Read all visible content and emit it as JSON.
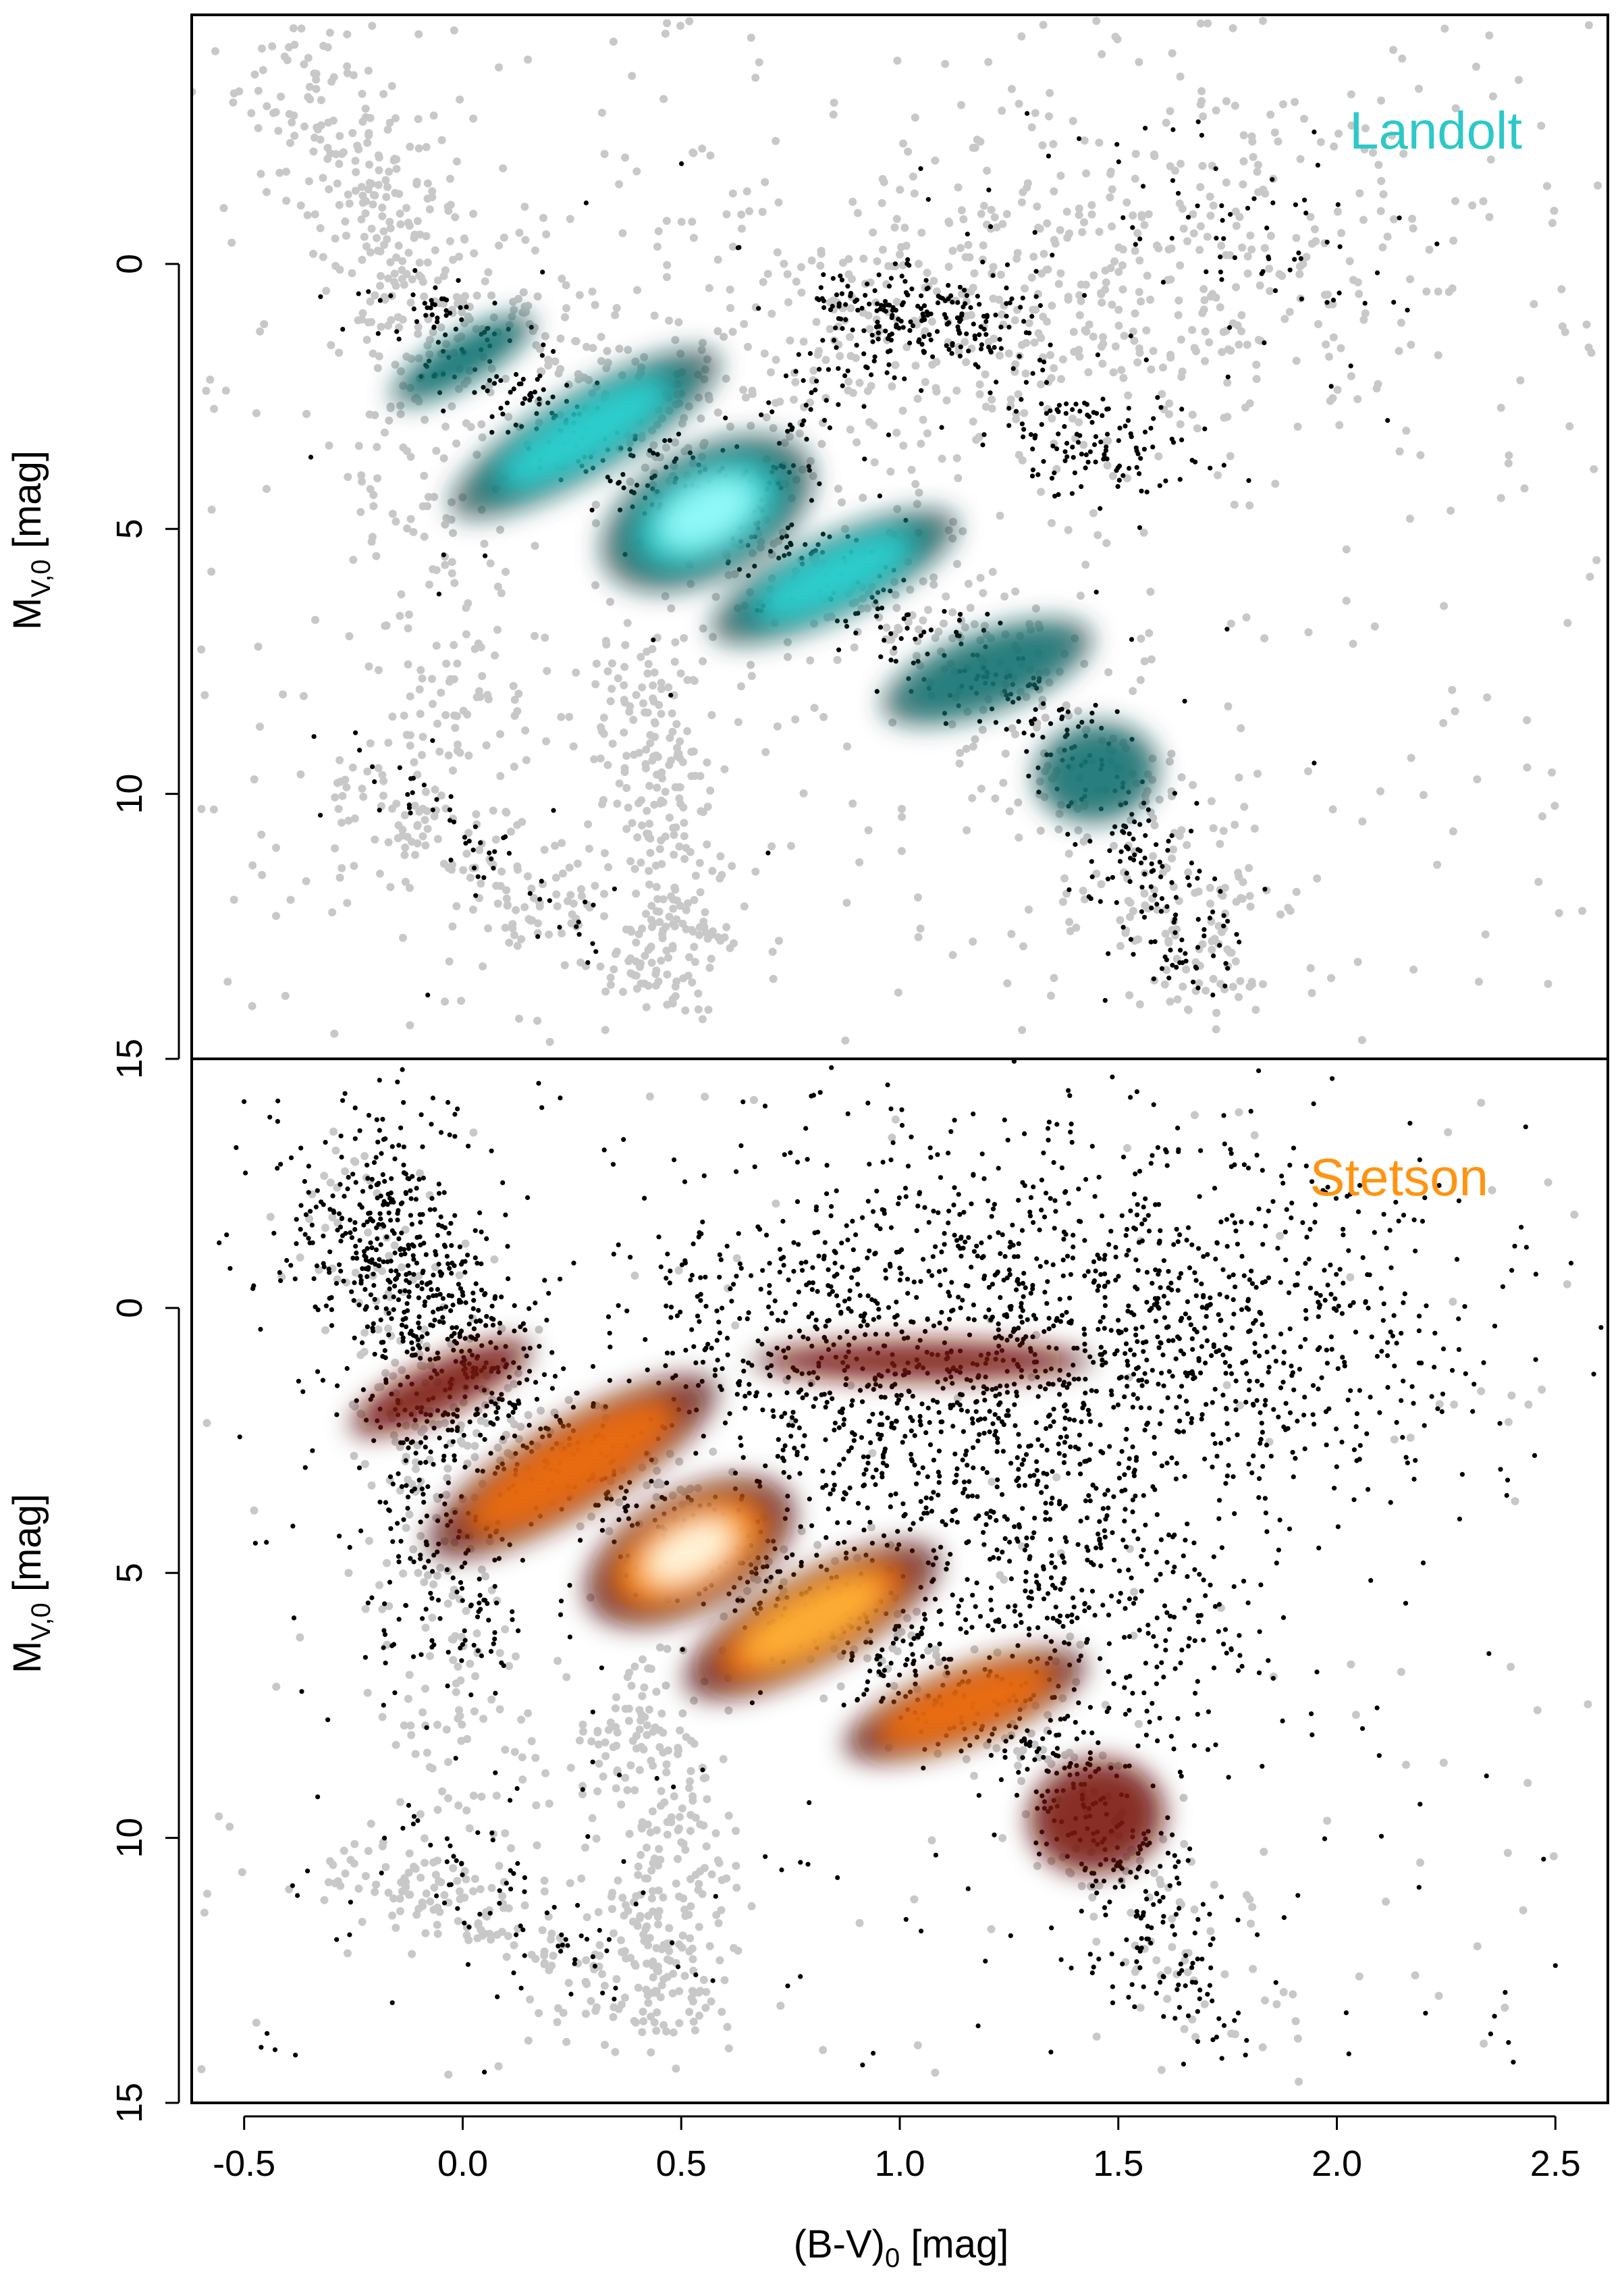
{
  "chart_data": [
    {
      "type": "scatter",
      "panel": "top",
      "annotation": "Landolt",
      "annotation_color": "#2ec8c8",
      "xlabel": {
        "main": "(B-V)",
        "sub": "0",
        "suffix": " [mag]"
      },
      "ylabel": {
        "main": "M",
        "sub": "V,0",
        "suffix": " [mag]"
      },
      "xlim": [
        -0.62,
        2.62
      ],
      "ylim": [
        15,
        -4.7
      ],
      "y_inverted": true,
      "yticks": [
        0,
        5,
        10,
        15
      ],
      "ytick_labels": [
        "0",
        "5",
        "10",
        "15"
      ],
      "background_color": "#c8c8c8",
      "foreground_color": "#000000",
      "density_colors": [
        "#000000",
        "#0a3a3a",
        "#157d7d",
        "#2fd6d6",
        "#8ff8f8"
      ],
      "series": [
        {
          "role": "background",
          "ridges": [
            {
              "path": [
                [
                  -0.45,
                  -4.2
                ],
                [
                  -0.25,
                  -2.5
                ],
                [
                  -0.1,
                  0.2
                ],
                [
                  0.3,
                  2.0
                ],
                [
                  0.6,
                  4.6
                ],
                [
                  1.0,
                  6.6
                ],
                [
                  1.35,
                  8.5
                ],
                [
                  1.5,
                  10.5
                ],
                [
                  1.75,
                  13.8
                ]
              ],
              "spread": 0.11,
              "count": 650
            },
            {
              "path": [
                [
                  0.75,
                  0.8
                ],
                [
                  1.1,
                  0.9
                ],
                [
                  1.5,
                  0.4
                ],
                [
                  1.9,
                  0.6
                ]
              ],
              "spread": 0.25,
              "count": 350
            },
            {
              "path": [
                [
                  0.6,
                  2.4
                ],
                [
                  1.0,
                  1.5
                ],
                [
                  1.6,
                  -2.1
                ],
                [
                  2.0,
                  -1.0
                ]
              ],
              "spread": 0.28,
              "count": 260
            },
            {
              "path": [
                [
                  -0.3,
                  -3.0
                ],
                [
                  -0.1,
                  1.0
                ],
                [
                  -0.05,
                  6.0
                ],
                [
                  0.0,
                  10.0
                ]
              ],
              "spread": 0.09,
              "count": 240
            },
            {
              "path": [
                [
                  -0.25,
                  10.0
                ],
                [
                  0.2,
                  12.0
                ],
                [
                  0.5,
                  13.5
                ]
              ],
              "spread": 0.09,
              "count": 180
            },
            {
              "path": [
                [
                  0.4,
                  7.0
                ],
                [
                  0.45,
                  10.0
                ],
                [
                  0.48,
                  13.5
                ]
              ],
              "spread": 0.07,
              "count": 230
            }
          ],
          "uniform": {
            "x": [
              -0.6,
              2.6
            ],
            "y": [
              -4.6,
              14.8
            ],
            "count": 450
          }
        },
        {
          "role": "foreground",
          "ridges": [
            {
              "path": [
                [
                  -0.15,
                  0.5
                ],
                [
                  0.3,
                  3.5
                ],
                [
                  0.6,
                  4.7
                ],
                [
                  1.0,
                  6.8
                ],
                [
                  1.3,
                  8.4
                ],
                [
                  1.5,
                  10.5
                ],
                [
                  1.7,
                  13.5
                ]
              ],
              "spread": 0.07,
              "count": 550
            },
            {
              "path": [
                [
                  0.6,
                  4.5
                ],
                [
                  0.85,
                  2.0
                ],
                [
                  1.25,
                  1.0
                ]
              ],
              "spread": 0.07,
              "count": 120
            },
            {
              "path": [
                [
                  0.8,
                  0.9
                ],
                [
                  1.0,
                  0.8
                ],
                [
                  1.25,
                  1.1
                ]
              ],
              "spread": 0.06,
              "count": 150
            },
            {
              "path": [
                [
                  1.3,
                  2.6
                ],
                [
                  1.5,
                  3.5
                ],
                [
                  1.65,
                  4.0
                ]
              ],
              "spread": 0.09,
              "count": 130
            },
            {
              "path": [
                [
                  1.35,
                  -1.2
                ],
                [
                  1.6,
                  -0.8
                ],
                [
                  2.1,
                  0.8
                ]
              ],
              "spread": 0.15,
              "count": 70
            },
            {
              "path": [
                [
                  -0.25,
                  9.0
                ],
                [
                  0.1,
                  11.5
                ],
                [
                  0.3,
                  13.0
                ]
              ],
              "spread": 0.05,
              "count": 55
            }
          ],
          "uniform": {
            "x": [
              -0.4,
              2.2
            ],
            "y": [
              -2.7,
              14.0
            ],
            "count": 40
          }
        },
        {
          "role": "density",
          "blobs": [
            {
              "x": 0.56,
              "y": 4.7,
              "sx": 0.14,
              "sy": 0.65,
              "angle": -28,
              "weight": 1.0
            },
            {
              "x": 0.28,
              "y": 3.2,
              "sx": 0.24,
              "sy": 0.55,
              "angle": -30,
              "weight": 0.6
            },
            {
              "x": 0.85,
              "y": 5.9,
              "sx": 0.22,
              "sy": 0.55,
              "angle": -25,
              "weight": 0.55
            },
            {
              "x": 1.2,
              "y": 7.7,
              "sx": 0.2,
              "sy": 0.6,
              "angle": -20,
              "weight": 0.45
            },
            {
              "x": 1.45,
              "y": 9.6,
              "sx": 0.12,
              "sy": 0.8,
              "angle": -10,
              "weight": 0.4
            },
            {
              "x": 0.0,
              "y": 1.8,
              "sx": 0.18,
              "sy": 0.45,
              "angle": -30,
              "weight": 0.3
            }
          ]
        }
      ]
    },
    {
      "type": "scatter",
      "panel": "bottom",
      "annotation": "Stetson",
      "annotation_color": "#ff9411",
      "xlabel": {
        "main": "(B-V)",
        "sub": "0",
        "suffix": " [mag]"
      },
      "ylabel": {
        "main": "M",
        "sub": "V,0",
        "suffix": " [mag]"
      },
      "xlim": [
        -0.62,
        2.62
      ],
      "ylim": [
        15,
        -4.7
      ],
      "y_inverted": true,
      "xticks": [
        -0.5,
        0.0,
        0.5,
        1.0,
        1.5,
        2.0,
        2.5
      ],
      "xtick_labels": [
        "-0.5",
        "0.0",
        "0.5",
        "1.0",
        "1.5",
        "2.0",
        "2.5"
      ],
      "yticks": [
        0,
        5,
        10,
        15
      ],
      "ytick_labels": [
        "0",
        "5",
        "10",
        "15"
      ],
      "background_color": "#c8c8c8",
      "foreground_color": "#000000",
      "density_colors": [
        "#000000",
        "#3a0303",
        "#8a1a0a",
        "#ff7a0a",
        "#ffb43a",
        "#fff3d8"
      ],
      "series": [
        {
          "role": "background",
          "ridges": [
            {
              "path": [
                [
                  -0.1,
                  1.0
                ],
                [
                  0.3,
                  3.0
                ],
                [
                  0.6,
                  4.6
                ],
                [
                  1.0,
                  6.6
                ],
                [
                  1.35,
                  8.5
                ],
                [
                  1.5,
                  10.5
                ],
                [
                  1.75,
                  13.8
                ]
              ],
              "spread": 0.1,
              "count": 300
            },
            {
              "path": [
                [
                  -0.3,
                  -3.0
                ],
                [
                  -0.1,
                  1.0
                ],
                [
                  -0.05,
                  6.0
                ],
                [
                  0.05,
                  10.0
                ]
              ],
              "spread": 0.09,
              "count": 220
            },
            {
              "path": [
                [
                  -0.25,
                  10.5
                ],
                [
                  0.2,
                  12.0
                ],
                [
                  0.5,
                  13.2
                ]
              ],
              "spread": 0.09,
              "count": 180
            },
            {
              "path": [
                [
                  0.4,
                  7.0
                ],
                [
                  0.45,
                  10.0
                ],
                [
                  0.5,
                  13.5
                ]
              ],
              "spread": 0.08,
              "count": 260
            }
          ],
          "uniform": {
            "x": [
              -0.6,
              2.6
            ],
            "y": [
              -4.0,
              14.5
            ],
            "count": 160
          }
        },
        {
          "role": "foreground",
          "ridges": [
            {
              "path": [
                [
                  -0.25,
                  -2.0
                ],
                [
                  0.1,
                  2.0
                ],
                [
                  0.4,
                  3.8
                ],
                [
                  0.6,
                  4.6
                ],
                [
                  1.0,
                  6.7
                ],
                [
                  1.35,
                  8.4
                ],
                [
                  1.5,
                  10.5
                ],
                [
                  1.7,
                  13.5
                ]
              ],
              "spread": 0.08,
              "count": 800
            },
            {
              "path": [
                [
                  0.7,
                  0.9
                ],
                [
                  1.1,
                  1.0
                ],
                [
                  1.5,
                  1.2
                ],
                [
                  1.9,
                  1.5
                ]
              ],
              "spread": 0.22,
              "count": 700
            },
            {
              "path": [
                [
                  0.6,
                  0.8
                ],
                [
                  1.1,
                  -1.0
                ],
                [
                  1.6,
                  -1.0
                ],
                [
                  2.1,
                  1.0
                ]
              ],
              "spread": 0.28,
              "count": 800
            },
            {
              "path": [
                [
                  -0.2,
                  -3.5
                ],
                [
                  -0.1,
                  0.0
                ],
                [
                  -0.05,
                  4.0
                ],
                [
                  -0.05,
                  6.6
                ]
              ],
              "spread": 0.1,
              "count": 450
            },
            {
              "path": [
                [
                  1.0,
                  3.0
                ],
                [
                  1.3,
                  4.5
                ],
                [
                  1.5,
                  5.5
                ],
                [
                  1.6,
                  7.0
                ]
              ],
              "spread": 0.18,
              "count": 500
            },
            {
              "path": [
                [
                  -0.4,
                  -1.5
                ],
                [
                  -0.2,
                  -0.8
                ],
                [
                  0.1,
                  0.5
                ]
              ],
              "spread": 0.12,
              "count": 120
            },
            {
              "path": [
                [
                  -0.1,
                  10.0
                ],
                [
                  0.2,
                  12.0
                ],
                [
                  0.3,
                  12.8
                ]
              ],
              "spread": 0.06,
              "count": 60
            }
          ],
          "uniform": {
            "x": [
              -0.55,
              2.5
            ],
            "y": [
              -4.3,
              14.5
            ],
            "count": 250
          }
        },
        {
          "role": "density",
          "blobs": [
            {
              "x": 0.52,
              "y": 4.6,
              "sx": 0.14,
              "sy": 0.6,
              "angle": -28,
              "weight": 1.0
            },
            {
              "x": 0.8,
              "y": 5.9,
              "sx": 0.2,
              "sy": 0.55,
              "angle": -28,
              "weight": 0.75
            },
            {
              "x": 0.25,
              "y": 3.0,
              "sx": 0.3,
              "sy": 0.7,
              "angle": -30,
              "weight": 0.45
            },
            {
              "x": 1.15,
              "y": 7.5,
              "sx": 0.22,
              "sy": 0.55,
              "angle": -20,
              "weight": 0.5
            },
            {
              "x": 1.45,
              "y": 9.6,
              "sx": 0.13,
              "sy": 0.9,
              "angle": -10,
              "weight": 0.42
            },
            {
              "x": 1.05,
              "y": 1.0,
              "sx": 0.35,
              "sy": 0.35,
              "angle": 0,
              "weight": 0.35
            },
            {
              "x": -0.05,
              "y": 1.5,
              "sx": 0.22,
              "sy": 0.5,
              "angle": -25,
              "weight": 0.3
            }
          ]
        }
      ]
    }
  ]
}
